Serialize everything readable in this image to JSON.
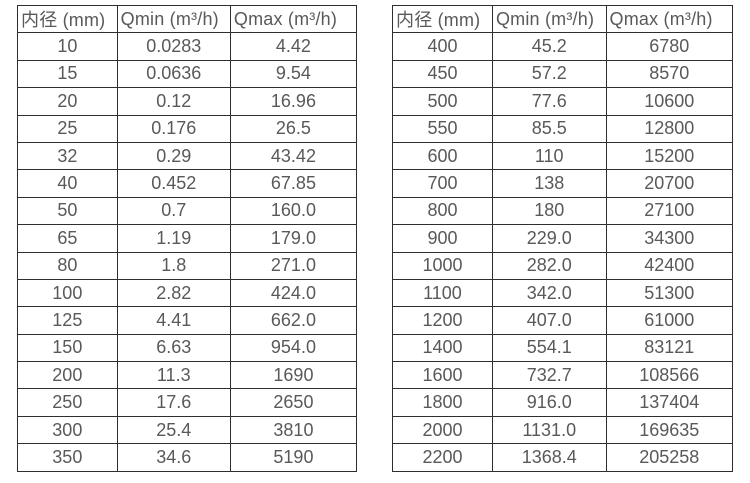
{
  "page": {
    "background_color": "#ffffff",
    "border_color": "#2e2e2e",
    "text_color": "#58595b"
  },
  "tables": [
    {
      "name": "flow-table-dn10-350",
      "headers": [
        "内径 (mm)",
        "Qmin (m³/h)",
        "Qmax (m³/h)"
      ],
      "rows": [
        [
          "10",
          "0.0283",
          "4.42"
        ],
        [
          "15",
          "0.0636",
          "9.54"
        ],
        [
          "20",
          "0.12",
          "16.96"
        ],
        [
          "25",
          "0.176",
          "26.5"
        ],
        [
          "32",
          "0.29",
          "43.42"
        ],
        [
          "40",
          "0.452",
          "67.85"
        ],
        [
          "50",
          "0.7",
          "160.0"
        ],
        [
          "65",
          "1.19",
          "179.0"
        ],
        [
          "80",
          "1.8",
          "271.0"
        ],
        [
          "100",
          "2.82",
          "424.0"
        ],
        [
          "125",
          "4.41",
          "662.0"
        ],
        [
          "150",
          "6.63",
          "954.0"
        ],
        [
          "200",
          "11.3",
          "1690"
        ],
        [
          "250",
          "17.6",
          "2650"
        ],
        [
          "300",
          "25.4",
          "3810"
        ],
        [
          "350",
          "34.6",
          "5190"
        ]
      ]
    },
    {
      "name": "flow-table-dn400-2200",
      "headers": [
        "内径 (mm)",
        "Qmin (m³/h)",
        "Qmax (m³/h)"
      ],
      "rows": [
        [
          "400",
          "45.2",
          "6780"
        ],
        [
          "450",
          "57.2",
          "8570"
        ],
        [
          "500",
          "77.6",
          "10600"
        ],
        [
          "550",
          "85.5",
          "12800"
        ],
        [
          "600",
          "110",
          "15200"
        ],
        [
          "700",
          "138",
          "20700"
        ],
        [
          "800",
          "180",
          "27100"
        ],
        [
          "900",
          "229.0",
          "34300"
        ],
        [
          "1000",
          "282.0",
          "42400"
        ],
        [
          "1100",
          "342.0",
          "51300"
        ],
        [
          "1200",
          "407.0",
          "61000"
        ],
        [
          "1400",
          "554.1",
          "83121"
        ],
        [
          "1600",
          "732.7",
          "108566"
        ],
        [
          "1800",
          "916.0",
          "137404"
        ],
        [
          "2000",
          "1131.0",
          "169635"
        ],
        [
          "2200",
          "1368.4",
          "205258"
        ]
      ]
    }
  ]
}
